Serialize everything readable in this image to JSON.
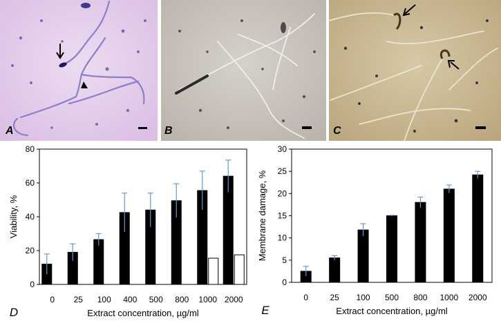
{
  "micrographs": [
    {
      "letter": "A"
    },
    {
      "letter": "B"
    },
    {
      "letter": "C"
    }
  ],
  "chart_data": [
    {
      "type": "bar",
      "panel_letter": "D",
      "categories": [
        "0",
        "25",
        "100",
        "400",
        "500",
        "800",
        "1000",
        "2000"
      ],
      "series": [
        {
          "color": "#000000",
          "values": [
            12,
            19,
            26.5,
            42.5,
            44,
            49.5,
            55.5,
            64
          ],
          "errors": [
            6,
            5,
            3.5,
            11.5,
            10,
            10,
            11.5,
            9.5
          ]
        },
        {
          "color": "#ffffff",
          "values": [
            null,
            null,
            null,
            null,
            null,
            null,
            15.5,
            17.5
          ]
        }
      ],
      "xlabel": "Extract concentration, µg/ml",
      "ylabel": "Viability, %",
      "ylim": [
        0,
        80
      ],
      "yticks": [
        0,
        20,
        40,
        60,
        80
      ],
      "error_bar_color": "#5b9bd5",
      "grid": false
    },
    {
      "type": "bar",
      "panel_letter": "E",
      "categories": [
        "0",
        "25",
        "100",
        "500",
        "800",
        "1000",
        "2000"
      ],
      "series": [
        {
          "color": "#000000",
          "values": [
            2.5,
            5.5,
            11.8,
            15,
            18,
            21,
            24.2
          ],
          "errors": [
            1.1,
            0.5,
            1.4,
            0.1,
            1.2,
            0.9,
            0.8
          ]
        }
      ],
      "xlabel": "Extract concentration, µg/ml",
      "ylabel": "Membrane damage, %",
      "ylim": [
        0,
        30
      ],
      "yticks": [
        0,
        5,
        10,
        15,
        20,
        25,
        30
      ],
      "error_bar_color": "#5b9bd5",
      "grid": false
    }
  ]
}
